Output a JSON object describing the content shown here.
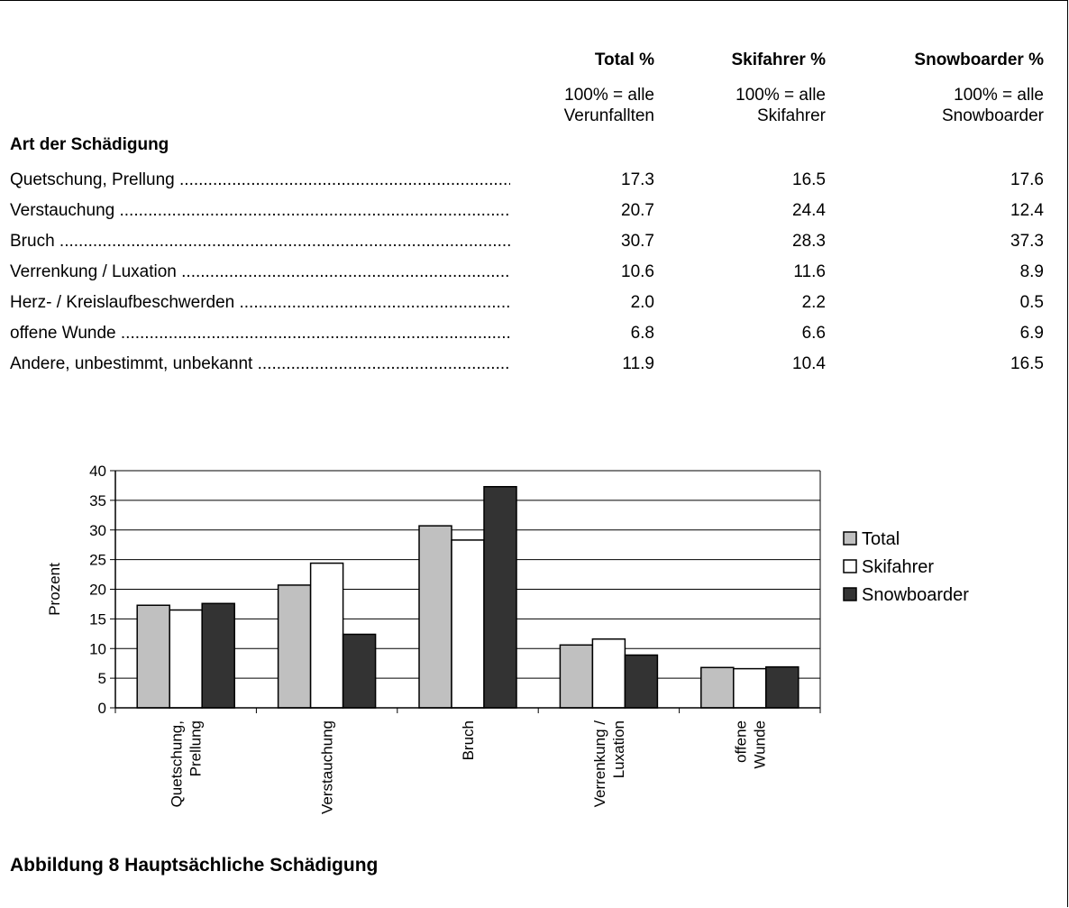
{
  "table": {
    "columns": [
      {
        "header": "Total %",
        "sub1": "100% = alle",
        "sub2": "Verunfallten"
      },
      {
        "header": "Skifahrer %",
        "sub1": "100% = alle",
        "sub2": "Skifahrer"
      },
      {
        "header": "Snowboarder %",
        "sub1": "100% = alle",
        "sub2": "Snowboarder"
      }
    ],
    "section_label": "Art der Schädigung",
    "rows": [
      {
        "label": "Quetschung, Prellung",
        "values": [
          "17.3",
          "16.5",
          "17.6"
        ]
      },
      {
        "label": "Verstauchung",
        "values": [
          "20.7",
          "24.4",
          "12.4"
        ]
      },
      {
        "label": "Bruch",
        "values": [
          "30.7",
          "28.3",
          "37.3"
        ]
      },
      {
        "label": "Verrenkung / Luxation",
        "values": [
          "10.6",
          "11.6",
          "8.9"
        ]
      },
      {
        "label": "Herz- / Kreislaufbeschwerden",
        "values": [
          "2.0",
          "2.2",
          "0.5"
        ]
      },
      {
        "label": "offene Wunde",
        "values": [
          "6.8",
          "6.6",
          "6.9"
        ]
      },
      {
        "label": "Andere, unbestimmt, unbekannt",
        "values": [
          "11.9",
          "10.4",
          "16.5"
        ]
      }
    ]
  },
  "chart_data": {
    "type": "bar",
    "categories": [
      [
        "Quetschung,",
        "Prellung"
      ],
      [
        "Verstauchung"
      ],
      [
        "Bruch"
      ],
      [
        "Verrenkung /",
        "Luxation"
      ],
      [
        "offene",
        "Wunde"
      ]
    ],
    "series": [
      {
        "name": "Total",
        "color": "#c0c0c0",
        "values": [
          17.3,
          20.7,
          30.7,
          10.6,
          6.8
        ]
      },
      {
        "name": "Skifahrer",
        "color": "#ffffff",
        "values": [
          16.5,
          24.4,
          28.3,
          11.6,
          6.6
        ]
      },
      {
        "name": "Snowboarder",
        "color": "#333333",
        "values": [
          17.6,
          12.4,
          37.3,
          8.9,
          6.9
        ]
      }
    ],
    "title": "",
    "xlabel": "",
    "ylabel": "Prozent",
    "ylim": [
      0,
      40
    ],
    "yticks": [
      0,
      5,
      10,
      15,
      20,
      25,
      30,
      35,
      40
    ],
    "grid": true,
    "legend": "right"
  },
  "caption": "Abbildung 8 Hauptsächliche Schädigung"
}
